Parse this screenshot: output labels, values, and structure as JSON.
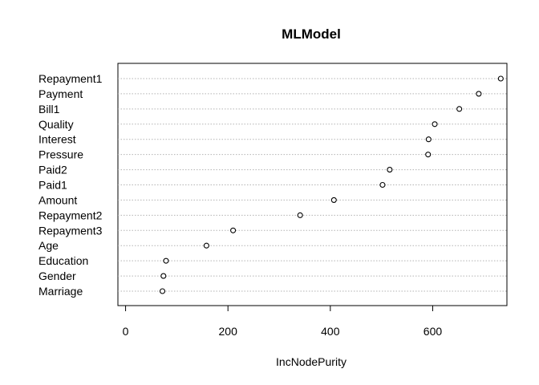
{
  "chart_data": {
    "type": "scatter",
    "title": "MLModel",
    "xlabel": "IncNodePurity",
    "ylabel": "",
    "xlim": [
      -15,
      745
    ],
    "xticks": [
      0,
      200,
      400,
      600
    ],
    "grid": "dotted horizontal lines per category",
    "categories": [
      "Repayment1",
      "Payment",
      "Bill1",
      "Quality",
      "Interest",
      "Pressure",
      "Paid2",
      "Paid1",
      "Amount",
      "Repayment2",
      "Repayment3",
      "Age",
      "Education",
      "Gender",
      "Marriage"
    ],
    "values": [
      733,
      690,
      652,
      604,
      592,
      591,
      516,
      502,
      407,
      341,
      210,
      158,
      79,
      74,
      72
    ]
  }
}
